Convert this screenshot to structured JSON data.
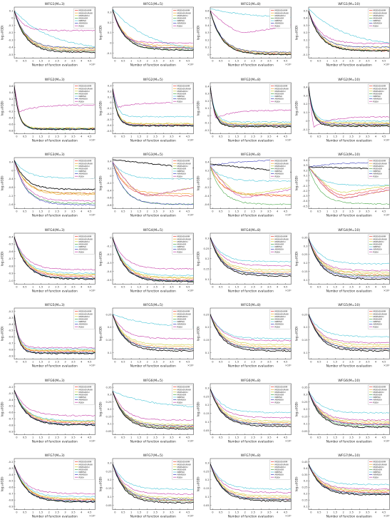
{
  "xlabel": "Number of function evaluation",
  "ylabel": "log₁₀(IGD)",
  "x_exponent": "×10⁴",
  "x_ticks": [
    "0",
    "0.5",
    "1",
    "1.5",
    "2",
    "2.5",
    "3",
    "3.5",
    "4",
    "4.5"
  ],
  "legend": [
    {
      "name": "MOEADAWM",
      "color": "#e8413c"
    },
    {
      "name": "MOEADURAW",
      "color": "#f0a32a"
    },
    {
      "name": "MOEADDU",
      "color": "#c9cf3a"
    },
    {
      "name": "MOEADR",
      "color": "#4aa84a"
    },
    {
      "name": "NMPSO",
      "color": "#4cc6d8"
    },
    {
      "name": "ARMOEA",
      "color": "#3a3fb8"
    },
    {
      "name": "RSEA",
      "color": "#c53fa8"
    },
    {
      "name": "",
      "color": "#111111"
    }
  ],
  "chart_data": [
    {
      "type": "line",
      "title": "WFG1(M=3)",
      "ylim": [
        -0.6,
        0.1
      ],
      "y_ticks": [
        "0.1",
        "0",
        "-0.1",
        "-0.2",
        "-0.3",
        "-0.4",
        "-0.5"
      ],
      "shapes": [
        "exp",
        "exp",
        "exp",
        "exp",
        "slow",
        "exp",
        "drop-flat",
        "exp"
      ],
      "start": [
        0.05,
        0.05,
        0.05,
        0.05,
        0.05,
        0.05,
        0.05,
        0.05
      ],
      "end": [
        -0.5,
        -0.48,
        -0.46,
        -0.5,
        -0.5,
        -0.46,
        -0.22,
        -0.52
      ]
    },
    {
      "type": "line",
      "title": "WFG1(M=5)",
      "ylim": [
        -0.2,
        0.3
      ],
      "y_ticks": [
        "0.3",
        "0.2",
        "0.1",
        "0",
        "-0.1"
      ],
      "shapes": [
        "exp",
        "exp",
        "exp",
        "exp",
        "slow",
        "exp",
        "drop-flat",
        "exp"
      ],
      "start": [
        0.28,
        0.28,
        0.28,
        0.28,
        0.28,
        0.28,
        0.28,
        0.28
      ],
      "end": [
        -0.1,
        -0.08,
        -0.1,
        -0.12,
        -0.15,
        -0.1,
        -0.05,
        -0.12
      ]
    },
    {
      "type": "line",
      "title": "WFG1(M=8)",
      "ylim": [
        -0.1,
        0.6
      ],
      "y_ticks": [
        "0.6",
        "0.5",
        "0.4",
        "0.3",
        "0.2",
        "0.1",
        "0"
      ],
      "shapes": [
        "exp",
        "exp",
        "exp",
        "exp",
        "slow",
        "exp",
        "valley",
        "exp"
      ],
      "start": [
        0.55,
        0.55,
        0.55,
        0.55,
        0.58,
        0.55,
        0.55,
        0.55
      ],
      "end": [
        -0.05,
        -0.03,
        -0.02,
        -0.05,
        0.45,
        -0.02,
        0.35,
        -0.05
      ]
    },
    {
      "type": "line",
      "title": "WFG1(M=10)",
      "ylim": [
        -0.2,
        0.5
      ],
      "y_ticks": [
        "0.5",
        "0.4",
        "0.3",
        "0.2",
        "0.1",
        "0",
        "-0.1"
      ],
      "shapes": [
        "exp",
        "exp",
        "exp",
        "exp",
        "slow",
        "exp",
        "exp",
        "exp"
      ],
      "start": [
        0.45,
        0.45,
        0.45,
        0.45,
        0.48,
        0.45,
        0.45,
        0.45
      ],
      "end": [
        -0.1,
        -0.08,
        -0.05,
        -0.1,
        -0.05,
        -0.05,
        0.0,
        -0.1
      ]
    },
    {
      "type": "line",
      "title": "WFG2(M=3)",
      "ylim": [
        -1.0,
        0.6
      ],
      "y_ticks": [
        "0.6",
        "0.4",
        "0.2",
        "0",
        "-0.2",
        "-0.4",
        "-0.6",
        "-0.8"
      ],
      "shapes": [
        "fast",
        "fast",
        "fast",
        "fast",
        "fast",
        "fast",
        "drop-rise",
        "fast"
      ],
      "start": [
        0.5,
        0.5,
        0.5,
        0.5,
        0.5,
        0.5,
        0.5,
        0.5
      ],
      "end": [
        -0.85,
        -0.83,
        -0.82,
        -0.86,
        -0.85,
        -0.85,
        -0.1,
        -0.86
      ]
    },
    {
      "type": "line",
      "title": "WFG2(M=5)",
      "ylim": [
        -0.6,
        0.3
      ],
      "y_ticks": [
        "0.3",
        "0.2",
        "0.1",
        "0",
        "-0.1",
        "-0.2",
        "-0.3",
        "-0.4",
        "-0.5"
      ],
      "shapes": [
        "fast",
        "fast",
        "fast",
        "fast",
        "fast",
        "fast",
        "drop-rise",
        "fast"
      ],
      "start": [
        0.2,
        0.2,
        0.2,
        0.2,
        0.2,
        0.2,
        0.2,
        0.2
      ],
      "end": [
        -0.45,
        -0.43,
        -0.42,
        -0.46,
        -0.3,
        -0.45,
        -0.05,
        -0.46
      ]
    },
    {
      "type": "line",
      "title": "WFG2(M=8)",
      "ylim": [
        -0.25,
        0.4
      ],
      "y_ticks": [
        "0.4",
        "0.3",
        "0.2",
        "0.1",
        "0",
        "-0.1",
        "-0.2"
      ],
      "shapes": [
        "fast",
        "fast",
        "fast",
        "fast",
        "fast",
        "fast",
        "drop-rise",
        "fast"
      ],
      "start": [
        0.35,
        0.35,
        0.35,
        0.35,
        0.35,
        0.35,
        0.35,
        0.35
      ],
      "end": [
        -0.15,
        -0.13,
        -0.12,
        -0.15,
        -0.1,
        -0.14,
        0.05,
        -0.16
      ]
    },
    {
      "type": "line",
      "title": "WFG2(M=10)",
      "ylim": [
        -0.2,
        0.4
      ],
      "y_ticks": [
        "0.4",
        "0.3",
        "0.2",
        "0.1",
        "0",
        "-0.1"
      ],
      "shapes": [
        "fast",
        "fast",
        "fast",
        "fast",
        "fast",
        "fast",
        "drop-rise",
        "fast"
      ],
      "start": [
        0.35,
        0.35,
        0.35,
        0.35,
        0.35,
        0.35,
        0.35,
        0.35
      ],
      "end": [
        -0.1,
        -0.08,
        -0.07,
        -0.1,
        -0.05,
        -0.09,
        0.0,
        -0.11
      ]
    },
    {
      "type": "line",
      "title": "WFG3(M=3)",
      "ylim": [
        -1.6,
        0.4
      ],
      "y_ticks": [
        "0.4",
        "0",
        "-0.4",
        "-0.8",
        "-1.2",
        "-1.6"
      ],
      "shapes": [
        "exp",
        "exp",
        "exp",
        "exp",
        "exp",
        "exp",
        "exp",
        "exp"
      ],
      "start": [
        0.3,
        0.3,
        0.3,
        0.3,
        0.3,
        0.3,
        0.3,
        0.3
      ],
      "end": [
        -1.0,
        -1.05,
        -1.0,
        -1.4,
        -0.4,
        -1.45,
        -1.3,
        -0.85
      ]
    },
    {
      "type": "line",
      "title": "WFG3(M=5)",
      "ylim": [
        -0.8,
        0.4
      ],
      "y_ticks": [
        "0.4",
        "0.2",
        "0",
        "-0.2",
        "-0.4",
        "-0.6",
        "-0.8"
      ],
      "shapes": [
        "exp",
        "exp",
        "valley",
        "exp",
        "exp",
        "exp",
        "valley",
        "flat"
      ],
      "start": [
        0.3,
        0.3,
        0.3,
        0.3,
        0.3,
        0.3,
        0.3,
        0.35
      ],
      "end": [
        -0.5,
        -0.45,
        -0.3,
        -0.7,
        -0.1,
        -0.7,
        -0.3,
        0.15
      ]
    },
    {
      "type": "line",
      "title": "WFG3(M=8)",
      "ylim": [
        -0.7,
        0.5
      ],
      "y_ticks": [
        "0.4",
        "0.2",
        "0",
        "-0.2",
        "-0.4",
        "-0.6"
      ],
      "shapes": [
        "exp",
        "exp",
        "valley",
        "exp",
        "exp",
        "rise",
        "valley",
        "flat"
      ],
      "start": [
        0.3,
        0.3,
        0.3,
        0.3,
        0.3,
        0.3,
        0.3,
        0.35
      ],
      "end": [
        -0.4,
        -0.38,
        -0.2,
        -0.6,
        -0.05,
        0.45,
        -0.25,
        0.15
      ]
    },
    {
      "type": "line",
      "title": "WFG3(M=10)",
      "ylim": [
        -0.6,
        0.5
      ],
      "y_ticks": [
        "0.4",
        "0.3",
        "0.2",
        "0.1",
        "0",
        "-0.1",
        "-0.2",
        "-0.3",
        "-0.4",
        "-0.5"
      ],
      "shapes": [
        "valley",
        "valley",
        "valley",
        "exp",
        "exp",
        "rise",
        "valley",
        "flat"
      ],
      "start": [
        0.3,
        0.3,
        0.3,
        0.3,
        0.3,
        0.3,
        0.3,
        0.3
      ],
      "end": [
        -0.15,
        -0.2,
        -0.1,
        -0.5,
        -0.1,
        0.4,
        -0.2,
        0.25
      ]
    },
    {
      "type": "line",
      "title": "WFG4(M=3)",
      "ylim": [
        -1.1,
        -0.4
      ],
      "y_ticks": [
        "-0.4",
        "-0.5",
        "-0.6",
        "-0.7",
        "-0.8",
        "-0.9",
        "-1.0"
      ],
      "shapes": [
        "exp",
        "exp",
        "exp",
        "exp",
        "exp",
        "exp",
        "exp",
        "exp"
      ],
      "start": [
        -0.45,
        -0.45,
        -0.45,
        -0.45,
        -0.45,
        -0.45,
        -0.45,
        -0.45
      ],
      "end": [
        -1.0,
        -0.98,
        -0.97,
        -1.02,
        -0.95,
        -1.02,
        -0.9,
        -1.03
      ]
    },
    {
      "type": "line",
      "title": "WFG4(M=5)",
      "ylim": [
        -0.6,
        0.0
      ],
      "y_ticks": [
        "0",
        "-0.1",
        "-0.2",
        "-0.3",
        "-0.4",
        "-0.5"
      ],
      "shapes": [
        "exp",
        "exp",
        "exp",
        "exp",
        "exp",
        "exp",
        "exp",
        "exp"
      ],
      "start": [
        -0.05,
        -0.05,
        -0.05,
        -0.05,
        -0.05,
        -0.05,
        -0.05,
        -0.05
      ],
      "end": [
        -0.55,
        -0.53,
        -0.52,
        -0.56,
        -0.5,
        -0.56,
        -0.42,
        -0.57
      ]
    },
    {
      "type": "line",
      "title": "WFG4(M=8)",
      "ylim": [
        0.05,
        0.3
      ],
      "y_ticks": [
        "0.3",
        "0.25",
        "0.2",
        "0.15",
        "0.1"
      ],
      "shapes": [
        "exp",
        "exp",
        "exp",
        "exp",
        "exp",
        "exp",
        "exp",
        "exp"
      ],
      "start": [
        0.28,
        0.28,
        0.28,
        0.28,
        0.28,
        0.28,
        0.28,
        0.28
      ],
      "end": [
        0.1,
        0.11,
        0.12,
        0.1,
        0.16,
        0.1,
        0.14,
        0.09
      ]
    },
    {
      "type": "line",
      "title": "WFG4(M=10)",
      "ylim": [
        0.05,
        0.35
      ],
      "y_ticks": [
        "0.35",
        "0.3",
        "0.25",
        "0.2",
        "0.15",
        "0.1"
      ],
      "shapes": [
        "exp",
        "exp",
        "exp",
        "exp",
        "exp",
        "exp",
        "exp",
        "exp"
      ],
      "start": [
        0.32,
        0.32,
        0.32,
        0.32,
        0.32,
        0.32,
        0.32,
        0.32
      ],
      "end": [
        0.1,
        0.11,
        0.12,
        0.1,
        0.17,
        0.09,
        0.13,
        0.08
      ]
    },
    {
      "type": "line",
      "title": "WFG5(M=3)",
      "ylim": [
        -1.0,
        -0.2
      ],
      "y_ticks": [
        "-0.2",
        "-0.3",
        "-0.4",
        "-0.5",
        "-0.6",
        "-0.7",
        "-0.8",
        "-0.9"
      ],
      "shapes": [
        "fast",
        "fast",
        "fast",
        "fast",
        "fast",
        "fast",
        "fast",
        "fast"
      ],
      "start": [
        -0.3,
        -0.3,
        -0.3,
        -0.3,
        -0.3,
        -0.3,
        -0.3,
        -0.3
      ],
      "end": [
        -0.88,
        -0.87,
        -0.86,
        -0.9,
        -0.84,
        -0.9,
        -0.82,
        -0.91
      ]
    },
    {
      "type": "line",
      "title": "WFG5(M=5)",
      "ylim": [
        0.05,
        0.3
      ],
      "y_ticks": [
        "0.25",
        "0.2",
        "0.15",
        "0.1"
      ],
      "shapes": [
        "exp",
        "exp",
        "exp",
        "exp",
        "slow",
        "exp",
        "exp",
        "exp"
      ],
      "start": [
        0.27,
        0.27,
        0.27,
        0.27,
        0.27,
        0.27,
        0.27,
        0.27
      ],
      "end": [
        0.1,
        0.11,
        0.12,
        0.1,
        0.2,
        0.1,
        0.15,
        0.09
      ]
    },
    {
      "type": "line",
      "title": "WFG5(M=8)",
      "ylim": [
        0.05,
        0.3
      ],
      "y_ticks": [
        "0.25",
        "0.2",
        "0.15",
        "0.1"
      ],
      "shapes": [
        "exp",
        "exp",
        "exp",
        "exp",
        "exp",
        "exp",
        "exp",
        "exp"
      ],
      "start": [
        0.27,
        0.27,
        0.27,
        0.27,
        0.27,
        0.27,
        0.27,
        0.27
      ],
      "end": [
        0.1,
        0.11,
        0.12,
        0.1,
        0.15,
        0.1,
        0.14,
        0.09
      ]
    },
    {
      "type": "line",
      "title": "WFG5(M=10)",
      "ylim": [
        0.05,
        0.3
      ],
      "y_ticks": [
        "0.25",
        "0.2",
        "0.15",
        "0.1"
      ],
      "shapes": [
        "exp",
        "exp",
        "exp",
        "exp",
        "exp",
        "exp",
        "exp",
        "exp"
      ],
      "start": [
        0.27,
        0.27,
        0.27,
        0.27,
        0.27,
        0.27,
        0.27,
        0.27
      ],
      "end": [
        0.1,
        0.11,
        0.12,
        0.1,
        0.16,
        0.1,
        0.13,
        0.09
      ]
    },
    {
      "type": "line",
      "title": "WFG6(M=3)",
      "ylim": [
        -1.0,
        -0.2
      ],
      "y_ticks": [
        "-0.2",
        "-0.3",
        "-0.4",
        "-0.5",
        "-0.6",
        "-0.7",
        "-0.8",
        "-0.9"
      ],
      "shapes": [
        "exp",
        "exp",
        "exp",
        "exp",
        "exp",
        "exp",
        "exp",
        "exp"
      ],
      "start": [
        -0.3,
        -0.3,
        -0.3,
        -0.3,
        -0.3,
        -0.3,
        -0.3,
        -0.3
      ],
      "end": [
        -0.82,
        -0.8,
        -0.79,
        -0.84,
        -0.78,
        -0.84,
        -0.7,
        -0.85
      ]
    },
    {
      "type": "line",
      "title": "WFG6(M=5)",
      "ylim": [
        0.0,
        0.35
      ],
      "y_ticks": [
        "0.35",
        "0.3",
        "0.25",
        "0.2",
        "0.15",
        "0.1",
        "0.05"
      ],
      "shapes": [
        "exp",
        "exp",
        "exp",
        "exp",
        "slow",
        "exp",
        "exp",
        "exp"
      ],
      "start": [
        0.3,
        0.3,
        0.3,
        0.3,
        0.3,
        0.3,
        0.3,
        0.3
      ],
      "end": [
        0.05,
        0.06,
        0.07,
        0.05,
        0.18,
        0.06,
        0.1,
        0.04
      ]
    },
    {
      "type": "line",
      "title": "WFG6(M=8)",
      "ylim": [
        0.0,
        0.3
      ],
      "y_ticks": [
        "0.3",
        "0.25",
        "0.2",
        "0.15",
        "0.1",
        "0.05"
      ],
      "shapes": [
        "exp",
        "exp",
        "exp",
        "exp",
        "exp",
        "exp",
        "exp",
        "exp"
      ],
      "start": [
        0.27,
        0.27,
        0.27,
        0.27,
        0.27,
        0.27,
        0.27,
        0.27
      ],
      "end": [
        0.06,
        0.07,
        0.08,
        0.06,
        0.13,
        0.06,
        0.1,
        0.05
      ]
    },
    {
      "type": "line",
      "title": "WFG6(M=10)",
      "ylim": [
        0.0,
        0.35
      ],
      "y_ticks": [
        "0.35",
        "0.3",
        "0.25",
        "0.2",
        "0.15",
        "0.1",
        "0.05"
      ],
      "shapes": [
        "exp",
        "exp",
        "exp",
        "exp",
        "exp",
        "exp",
        "exp",
        "exp"
      ],
      "start": [
        0.3,
        0.3,
        0.3,
        0.3,
        0.3,
        0.3,
        0.3,
        0.3
      ],
      "end": [
        0.07,
        0.08,
        0.09,
        0.06,
        0.15,
        0.07,
        0.1,
        0.05
      ]
    },
    {
      "type": "line",
      "title": "WFG7(M=3)",
      "ylim": [
        -1.0,
        -0.2
      ],
      "y_ticks": [
        "-0.2",
        "-0.3",
        "-0.4",
        "-0.5",
        "-0.6",
        "-0.7",
        "-0.8",
        "-0.9"
      ],
      "shapes": [
        "exp",
        "exp",
        "exp",
        "exp",
        "exp",
        "exp",
        "exp",
        "exp"
      ],
      "start": [
        -0.3,
        -0.3,
        -0.3,
        -0.3,
        -0.3,
        -0.3,
        -0.3,
        -0.3
      ],
      "end": [
        -0.85,
        -0.84,
        -0.83,
        -0.87,
        -0.8,
        -0.87,
        -0.75,
        -0.88
      ]
    },
    {
      "type": "line",
      "title": "WFG7(M=5)",
      "ylim": [
        0.0,
        0.3
      ],
      "y_ticks": [
        "0.3",
        "0.25",
        "0.2",
        "0.15",
        "0.1",
        "0.05"
      ],
      "shapes": [
        "exp",
        "exp",
        "exp",
        "exp",
        "exp",
        "exp",
        "exp",
        "exp"
      ],
      "start": [
        0.27,
        0.27,
        0.27,
        0.27,
        0.27,
        0.27,
        0.27,
        0.27
      ],
      "end": [
        0.05,
        0.06,
        0.07,
        0.05,
        0.12,
        0.06,
        0.09,
        0.04
      ]
    },
    {
      "type": "line",
      "title": "WFG7(M=8)",
      "ylim": [
        0.0,
        0.3
      ],
      "y_ticks": [
        "0.3",
        "0.25",
        "0.2",
        "0.15",
        "0.1",
        "0.05"
      ],
      "shapes": [
        "exp",
        "exp",
        "exp",
        "exp",
        "exp",
        "exp",
        "exp",
        "exp"
      ],
      "start": [
        0.27,
        0.27,
        0.27,
        0.27,
        0.27,
        0.27,
        0.27,
        0.27
      ],
      "end": [
        0.06,
        0.07,
        0.08,
        0.06,
        0.12,
        0.06,
        0.1,
        0.05
      ]
    },
    {
      "type": "line",
      "title": "WFG7(M=10)",
      "ylim": [
        0.0,
        0.45
      ],
      "y_ticks": [
        "0.45",
        "0.4",
        "0.35",
        "0.3",
        "0.25",
        "0.2",
        "0.15",
        "0.1"
      ],
      "shapes": [
        "exp",
        "exp",
        "exp",
        "exp",
        "exp",
        "exp",
        "exp",
        "exp"
      ],
      "start": [
        0.4,
        0.4,
        0.4,
        0.4,
        0.4,
        0.4,
        0.4,
        0.4
      ],
      "end": [
        0.15,
        0.16,
        0.17,
        0.14,
        0.22,
        0.14,
        0.18,
        0.13
      ]
    }
  ]
}
